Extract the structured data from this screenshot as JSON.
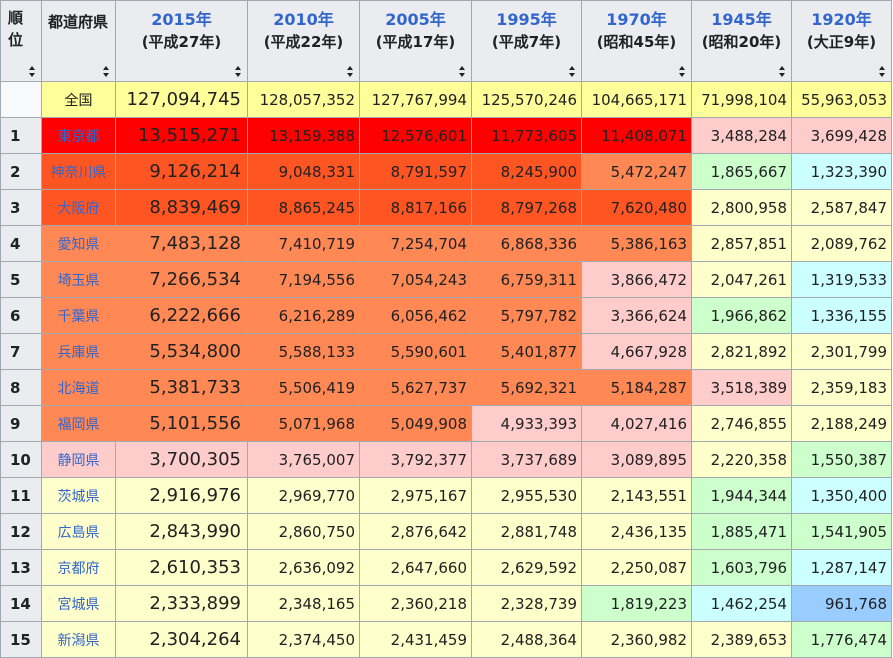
{
  "headers": {
    "rank": [
      "順",
      "位"
    ],
    "prefecture": "都道府県",
    "years": [
      {
        "year": "2015年",
        "era": "(平成27年)"
      },
      {
        "year": "2010年",
        "era": "(平成22年)"
      },
      {
        "year": "2005年",
        "era": "(平成17年)"
      },
      {
        "year": "1995年",
        "era": "(平成7年)"
      },
      {
        "year": "1970年",
        "era": "(昭和45年)"
      },
      {
        "year": "1945年",
        "era": "(昭和20年)"
      },
      {
        "year": "1920年",
        "era": "(大正9年)"
      }
    ]
  },
  "colors": {
    "y": "#ffff99",
    "r1": "#ff0000",
    "r2": "#ff5522",
    "r3": "#ff6633",
    "o1": "#ff8855",
    "o2": "#ffcccc",
    "ly": "#ffffcc",
    "lg": "#ccffcc",
    "lc": "#ccffff",
    "lb": "#99ccff"
  },
  "rows": [
    {
      "rank": "",
      "name": "全国",
      "link": false,
      "vals": [
        "127,094,745",
        "128,057,352",
        "127,767,994",
        "125,570,246",
        "104,665,171",
        "71,998,104",
        "55,963,053"
      ],
      "cls": [
        "y",
        "y",
        "y",
        "y",
        "y",
        "y",
        "y"
      ],
      "namecls": "y"
    },
    {
      "rank": "1",
      "name": "東京都",
      "link": true,
      "vals": [
        "13,515,271",
        "13,159,388",
        "12,576,601",
        "11,773,605",
        "11,408,071",
        "3,488,284",
        "3,699,428"
      ],
      "cls": [
        "r1",
        "r1",
        "r1",
        "r1",
        "r1",
        "o2",
        "o2"
      ],
      "namecls": "r1"
    },
    {
      "rank": "2",
      "name": "神奈川県",
      "link": true,
      "vals": [
        "9,126,214",
        "9,048,331",
        "8,791,597",
        "8,245,900",
        "5,472,247",
        "1,865,667",
        "1,323,390"
      ],
      "cls": [
        "r2",
        "r2",
        "r2",
        "r2",
        "o1",
        "lg",
        "lc"
      ],
      "namecls": "r2"
    },
    {
      "rank": "3",
      "name": "大阪府",
      "link": true,
      "vals": [
        "8,839,469",
        "8,865,245",
        "8,817,166",
        "8,797,268",
        "7,620,480",
        "2,800,958",
        "2,587,847"
      ],
      "cls": [
        "r2",
        "r2",
        "r2",
        "r2",
        "r2",
        "ly",
        "ly"
      ],
      "namecls": "r2"
    },
    {
      "rank": "4",
      "name": "愛知県",
      "link": true,
      "vals": [
        "7,483,128",
        "7,410,719",
        "7,254,704",
        "6,868,336",
        "5,386,163",
        "2,857,851",
        "2,089,762"
      ],
      "cls": [
        "o1",
        "o1",
        "o1",
        "o1",
        "o1",
        "ly",
        "ly"
      ],
      "namecls": "o1"
    },
    {
      "rank": "5",
      "name": "埼玉県",
      "link": true,
      "vals": [
        "7,266,534",
        "7,194,556",
        "7,054,243",
        "6,759,311",
        "3,866,472",
        "2,047,261",
        "1,319,533"
      ],
      "cls": [
        "o1",
        "o1",
        "o1",
        "o1",
        "o2",
        "ly",
        "lc"
      ],
      "namecls": "o1"
    },
    {
      "rank": "6",
      "name": "千葉県",
      "link": true,
      "vals": [
        "6,222,666",
        "6,216,289",
        "6,056,462",
        "5,797,782",
        "3,366,624",
        "1,966,862",
        "1,336,155"
      ],
      "cls": [
        "o1",
        "o1",
        "o1",
        "o1",
        "o2",
        "lg",
        "lc"
      ],
      "namecls": "o1"
    },
    {
      "rank": "7",
      "name": "兵庫県",
      "link": true,
      "vals": [
        "5,534,800",
        "5,588,133",
        "5,590,601",
        "5,401,877",
        "4,667,928",
        "2,821,892",
        "2,301,799"
      ],
      "cls": [
        "o1",
        "o1",
        "o1",
        "o1",
        "o2",
        "ly",
        "ly"
      ],
      "namecls": "o1"
    },
    {
      "rank": "8",
      "name": "北海道",
      "link": true,
      "vals": [
        "5,381,733",
        "5,506,419",
        "5,627,737",
        "5,692,321",
        "5,184,287",
        "3,518,389",
        "2,359,183"
      ],
      "cls": [
        "o1",
        "o1",
        "o1",
        "o1",
        "o1",
        "o2",
        "ly"
      ],
      "namecls": "o1"
    },
    {
      "rank": "9",
      "name": "福岡県",
      "link": true,
      "vals": [
        "5,101,556",
        "5,071,968",
        "5,049,908",
        "4,933,393",
        "4,027,416",
        "2,746,855",
        "2,188,249"
      ],
      "cls": [
        "o1",
        "o1",
        "o1",
        "o2",
        "o2",
        "ly",
        "ly"
      ],
      "namecls": "o1"
    },
    {
      "rank": "10",
      "name": "静岡県",
      "link": true,
      "vals": [
        "3,700,305",
        "3,765,007",
        "3,792,377",
        "3,737,689",
        "3,089,895",
        "2,220,358",
        "1,550,387"
      ],
      "cls": [
        "o2",
        "o2",
        "o2",
        "o2",
        "o2",
        "ly",
        "lg"
      ],
      "namecls": "o2"
    },
    {
      "rank": "11",
      "name": "茨城県",
      "link": true,
      "vals": [
        "2,916,976",
        "2,969,770",
        "2,975,167",
        "2,955,530",
        "2,143,551",
        "1,944,344",
        "1,350,400"
      ],
      "cls": [
        "ly",
        "ly",
        "ly",
        "ly",
        "ly",
        "lg",
        "lc"
      ],
      "namecls": "ly"
    },
    {
      "rank": "12",
      "name": "広島県",
      "link": true,
      "vals": [
        "2,843,990",
        "2,860,750",
        "2,876,642",
        "2,881,748",
        "2,436,135",
        "1,885,471",
        "1,541,905"
      ],
      "cls": [
        "ly",
        "ly",
        "ly",
        "ly",
        "ly",
        "lg",
        "lg"
      ],
      "namecls": "ly"
    },
    {
      "rank": "13",
      "name": "京都府",
      "link": true,
      "vals": [
        "2,610,353",
        "2,636,092",
        "2,647,660",
        "2,629,592",
        "2,250,087",
        "1,603,796",
        "1,287,147"
      ],
      "cls": [
        "ly",
        "ly",
        "ly",
        "ly",
        "ly",
        "lg",
        "lc"
      ],
      "namecls": "ly"
    },
    {
      "rank": "14",
      "name": "宮城県",
      "link": true,
      "vals": [
        "2,333,899",
        "2,348,165",
        "2,360,218",
        "2,328,739",
        "1,819,223",
        "1,462,254",
        "961,768"
      ],
      "cls": [
        "ly",
        "ly",
        "ly",
        "ly",
        "lg",
        "lc",
        "lb"
      ],
      "namecls": "ly"
    },
    {
      "rank": "15",
      "name": "新潟県",
      "link": true,
      "vals": [
        "2,304,264",
        "2,374,450",
        "2,431,459",
        "2,488,364",
        "2,360,982",
        "2,389,653",
        "1,776,474"
      ],
      "cls": [
        "ly",
        "ly",
        "ly",
        "ly",
        "ly",
        "ly",
        "lg"
      ],
      "namecls": "ly"
    }
  ]
}
